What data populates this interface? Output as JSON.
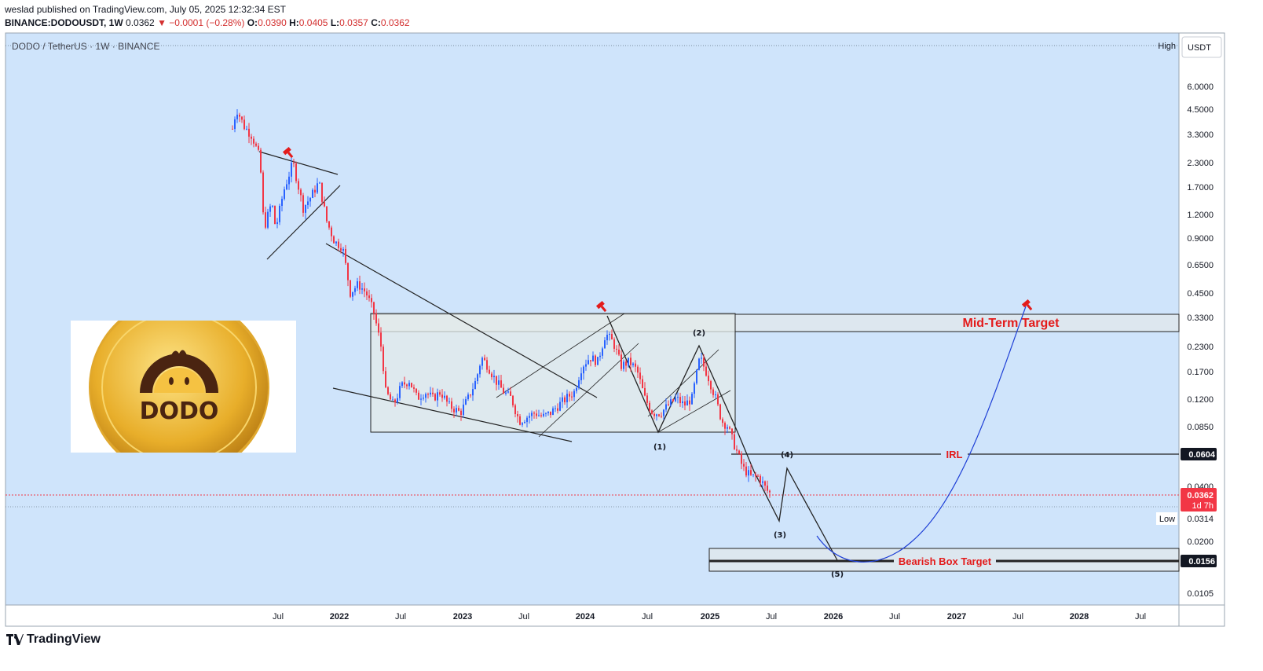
{
  "header": {
    "published": "weslad published on TradingView.com, July 05, 2025 12:32:34 EST",
    "symbol": "BINANCE:DODOUSDT, 1W",
    "last": "0.0362",
    "change": "−0.0001 (−0.28%)",
    "o_label": "O:",
    "o_value": "0.0390",
    "h_label": "H:",
    "h_value": "0.0405",
    "l_label": "L:",
    "l_value": "0.0357",
    "c_label": "C:",
    "c_value": "0.0362"
  },
  "legend_title": "DODO / TetherUS · 1W · BINANCE",
  "currency": "USDT",
  "logo": {
    "text": "DODO",
    "brand": "TradingView"
  },
  "colors": {
    "background": "#cfe4fb",
    "up": "#2962ff",
    "down": "#f23645",
    "annotation_red": "#e31b1b",
    "curve": "#1e3fd6"
  },
  "chart_data": {
    "type": "candlestick",
    "title": "DODO / TetherUS · 1W · BINANCE",
    "y_scale": "log",
    "y_ticks": [
      "6.0000",
      "4.5000",
      "3.3000",
      "2.3000",
      "1.7000",
      "1.2000",
      "0.9000",
      "0.6500",
      "0.4500",
      "0.3300",
      "0.2300",
      "0.1700",
      "0.1200",
      "0.0850",
      "0.0400",
      "0.0200",
      "0.0105"
    ],
    "x_ticks": [
      "Jul",
      "2022",
      "Jul",
      "2023",
      "Jul",
      "2024",
      "Jul",
      "2025",
      "Jul",
      "2026",
      "Jul",
      "2027",
      "Jul",
      "2028",
      "Jul"
    ],
    "price_labels": [
      {
        "value": "0.0604",
        "style": "dark"
      },
      {
        "value": "0.0362",
        "sub": "1d 7h",
        "style": "red"
      },
      {
        "value": "0.0314",
        "side": "Low",
        "style": "plain"
      },
      {
        "value": "0.0156",
        "style": "dark"
      }
    ],
    "high_label": "High",
    "annotations": [
      {
        "text": "Mid-Term Target",
        "color": "#e31b1b"
      },
      {
        "text": "IRL",
        "color": "#e31b1b"
      },
      {
        "text": "Bearish Box Target",
        "color": "#e31b1b"
      }
    ],
    "wave_labels": [
      "(1)",
      "(2)",
      "(3)",
      "(4)",
      "(5)"
    ],
    "levels": {
      "irl": 0.0604,
      "bearish_target": 0.0156,
      "mid_term_low": 0.28,
      "mid_term_high": 0.34,
      "range_low": 0.08,
      "range_high": 0.34
    }
  }
}
